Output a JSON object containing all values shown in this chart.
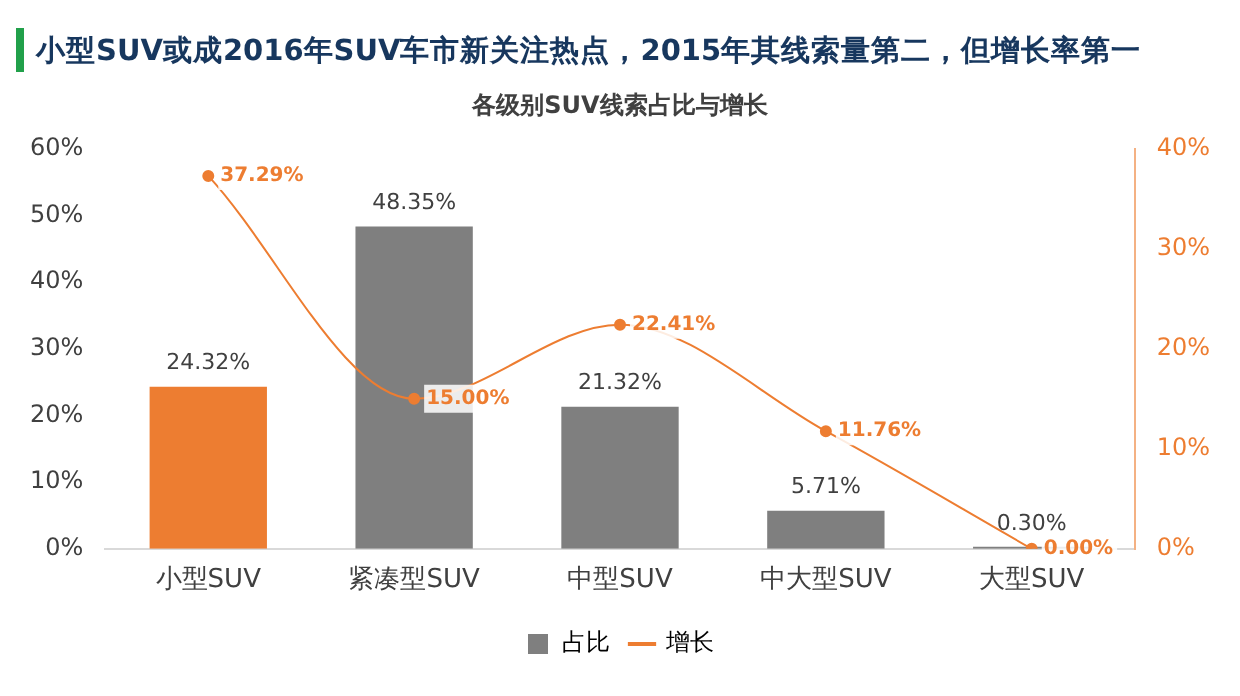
{
  "chart_data": {
    "type": "bar",
    "title": "小型SUV或成2016年SUV车市新关注热点，2015年其线索量第二，但增长率第一",
    "subtitle": "各级别SUV线索占比与增长",
    "categories": [
      "小型SUV",
      "紧凑型SUV",
      "中型SUV",
      "中大型SUV",
      "大型SUV"
    ],
    "series": [
      {
        "name": "占比",
        "color": "#7f7f7f",
        "colors": [
          "#ed7d31",
          "#7f7f7f",
          "#7f7f7f",
          "#7f7f7f",
          "#7f7f7f"
        ],
        "values": [
          24.32,
          48.35,
          21.32,
          5.71,
          0.3
        ],
        "value_labels": [
          "24.32%",
          "48.35%",
          "21.32%",
          "5.71%",
          "0.30%"
        ]
      },
      {
        "name": "增长",
        "type": "line",
        "color": "#ed7d31",
        "axis": "y2",
        "values": [
          37.29,
          15.0,
          22.41,
          11.76,
          0.0
        ],
        "value_labels": [
          "37.29%",
          "15.00%",
          "22.41%",
          "11.76%",
          "0.00%"
        ]
      }
    ],
    "ylim": [
      0,
      60
    ],
    "yticks": [
      {
        "value": 0,
        "label": "0%"
      },
      {
        "value": 10,
        "label": "10%"
      },
      {
        "value": 20,
        "label": "20%"
      },
      {
        "value": 30,
        "label": "30%"
      },
      {
        "value": 40,
        "label": "40%"
      },
      {
        "value": 50,
        "label": "50%"
      },
      {
        "value": 60,
        "label": "60%"
      }
    ],
    "y2lim": [
      0,
      40
    ],
    "y2ticks": [
      {
        "value": 0,
        "label": "0%"
      },
      {
        "value": 10,
        "label": "10%"
      },
      {
        "value": 20,
        "label": "20%"
      },
      {
        "value": 30,
        "label": "30%"
      },
      {
        "value": 40,
        "label": "40%"
      }
    ],
    "legend": "bottom",
    "marker": "circle",
    "grid": false
  }
}
